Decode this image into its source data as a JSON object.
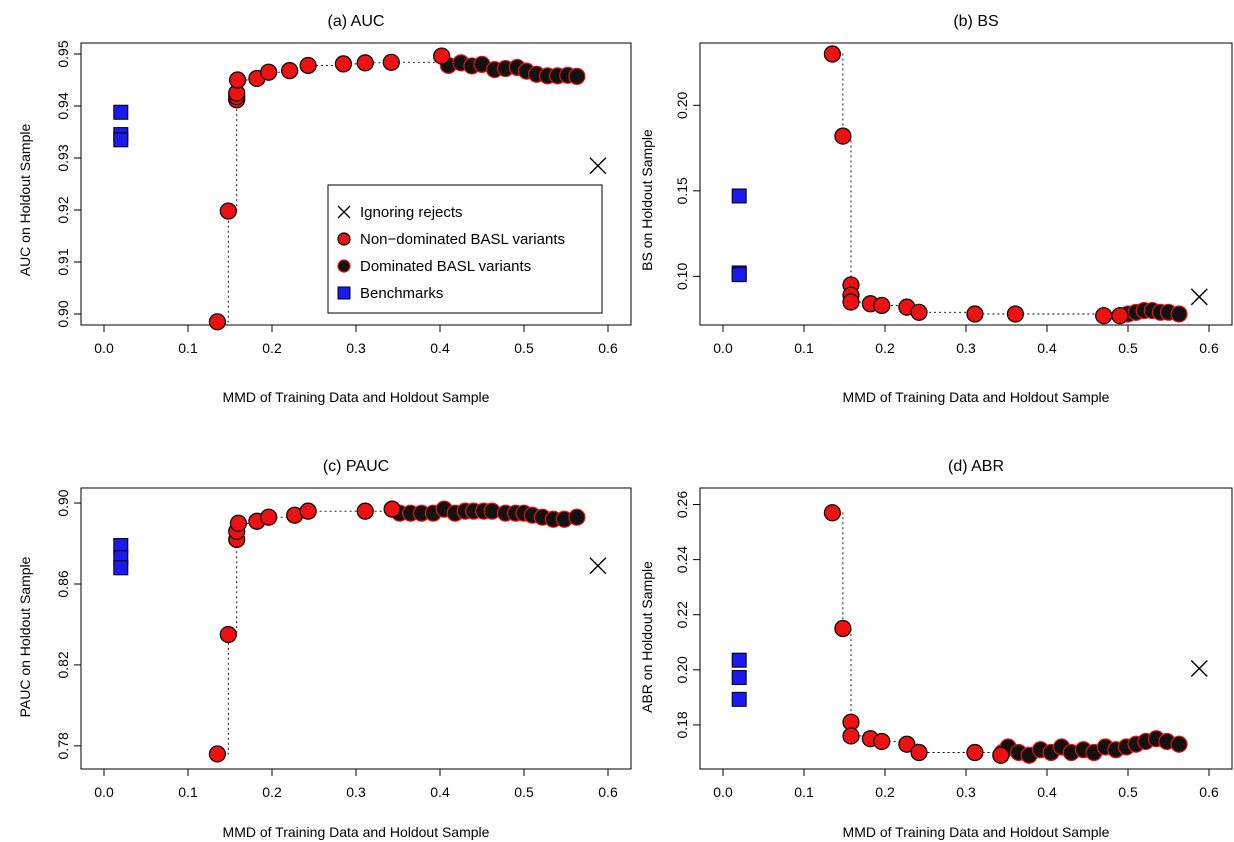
{
  "colors": {
    "non_dominated": "#ee1111",
    "dominated_fill": "#111111",
    "benchmark": "#1a1aee",
    "outline": "#000000"
  },
  "legend": {
    "items": [
      {
        "label": "Ignoring rejects",
        "marker": "cross"
      },
      {
        "label": "Non−dominated BASL variants",
        "marker": "red-circle"
      },
      {
        "label": "Dominated BASL variants",
        "marker": "dark-circle"
      },
      {
        "label": "Benchmarks",
        "marker": "blue-square"
      }
    ]
  },
  "chart_data": [
    {
      "type": "scatter",
      "title": "(a) AUC",
      "xlabel": "MMD of Training Data and Holdout Sample",
      "ylabel": "AUC on Holdout Sample",
      "xlim": [
        0.0,
        0.6
      ],
      "ylim": [
        0.9,
        0.95
      ],
      "xticks": [
        "0.0",
        "0.1",
        "0.2",
        "0.3",
        "0.4",
        "0.5",
        "0.6"
      ],
      "yticks": [
        "0.90",
        "0.91",
        "0.92",
        "0.93",
        "0.94",
        "0.95"
      ],
      "grid": false,
      "legend_position": "center-right",
      "ignoring_rejects": [
        0.588,
        0.9285
      ],
      "benchmarks": [
        [
          0.02,
          0.9388
        ],
        [
          0.02,
          0.9345
        ],
        [
          0.02,
          0.9335
        ]
      ],
      "frontier": [
        [
          0.135,
          0.8985
        ],
        [
          0.148,
          0.9198
        ],
        [
          0.158,
          0.9412
        ],
        [
          0.158,
          0.9418
        ],
        [
          0.158,
          0.9425
        ],
        [
          0.159,
          0.945
        ],
        [
          0.182,
          0.9453
        ],
        [
          0.196,
          0.9465
        ],
        [
          0.221,
          0.9468
        ],
        [
          0.243,
          0.9478
        ],
        [
          0.285,
          0.9481
        ],
        [
          0.311,
          0.9483
        ],
        [
          0.342,
          0.9484
        ],
        [
          0.402,
          0.9496
        ]
      ],
      "dominated": [
        [
          0.41,
          0.9478
        ],
        [
          0.425,
          0.9483
        ],
        [
          0.438,
          0.9477
        ],
        [
          0.45,
          0.948
        ],
        [
          0.465,
          0.947
        ],
        [
          0.478,
          0.9472
        ],
        [
          0.492,
          0.9474
        ],
        [
          0.503,
          0.9467
        ],
        [
          0.515,
          0.9461
        ],
        [
          0.528,
          0.9458
        ],
        [
          0.54,
          0.9458
        ],
        [
          0.552,
          0.9459
        ],
        [
          0.563,
          0.9457
        ]
      ]
    },
    {
      "type": "scatter",
      "title": "(b) BS",
      "xlabel": "MMD of Training Data and Holdout Sample",
      "ylabel": "BS on Holdout Sample",
      "xlim": [
        0.0,
        0.6
      ],
      "ylim": [
        0.078,
        0.23
      ],
      "xticks": [
        "0.0",
        "0.1",
        "0.2",
        "0.3",
        "0.4",
        "0.5",
        "0.6"
      ],
      "yticks": [
        "0.10",
        "0.15",
        "0.20"
      ],
      "grid": false,
      "ignoring_rejects": [
        0.588,
        0.088
      ],
      "benchmarks": [
        [
          0.02,
          0.147
        ],
        [
          0.02,
          0.102
        ],
        [
          0.02,
          0.101
        ]
      ],
      "frontier": [
        [
          0.135,
          0.23
        ],
        [
          0.148,
          0.182
        ],
        [
          0.158,
          0.095
        ],
        [
          0.158,
          0.089
        ],
        [
          0.158,
          0.085
        ],
        [
          0.182,
          0.084
        ],
        [
          0.196,
          0.083
        ],
        [
          0.227,
          0.082
        ],
        [
          0.242,
          0.079
        ],
        [
          0.311,
          0.078
        ],
        [
          0.361,
          0.078
        ],
        [
          0.47,
          0.077
        ],
        [
          0.49,
          0.077
        ]
      ],
      "dominated": [
        [
          0.5,
          0.078
        ],
        [
          0.51,
          0.079
        ],
        [
          0.52,
          0.08
        ],
        [
          0.53,
          0.08
        ],
        [
          0.54,
          0.079
        ],
        [
          0.55,
          0.079
        ],
        [
          0.563,
          0.078
        ]
      ]
    },
    {
      "type": "scatter",
      "title": "(c) PAUC",
      "xlabel": "MMD of Training Data and Holdout Sample",
      "ylabel": "PAUC on Holdout Sample",
      "xlim": [
        0.0,
        0.6
      ],
      "ylim": [
        0.774,
        0.902
      ],
      "xticks": [
        "0.0",
        "0.1",
        "0.2",
        "0.3",
        "0.4",
        "0.5",
        "0.6"
      ],
      "yticks": [
        "0.78",
        "0.82",
        "0.86",
        "0.90"
      ],
      "grid": false,
      "ignoring_rejects": [
        0.588,
        0.869
      ],
      "benchmarks": [
        [
          0.02,
          0.879
        ],
        [
          0.02,
          0.873
        ],
        [
          0.02,
          0.868
        ]
      ],
      "frontier": [
        [
          0.135,
          0.776
        ],
        [
          0.148,
          0.835
        ],
        [
          0.158,
          0.882
        ],
        [
          0.158,
          0.886
        ],
        [
          0.16,
          0.89
        ],
        [
          0.182,
          0.891
        ],
        [
          0.196,
          0.893
        ],
        [
          0.227,
          0.894
        ],
        [
          0.243,
          0.896
        ],
        [
          0.311,
          0.896
        ],
        [
          0.343,
          0.897
        ]
      ],
      "dominated": [
        [
          0.352,
          0.895
        ],
        [
          0.365,
          0.895
        ],
        [
          0.378,
          0.895
        ],
        [
          0.392,
          0.895
        ],
        [
          0.405,
          0.897
        ],
        [
          0.418,
          0.895
        ],
        [
          0.43,
          0.896
        ],
        [
          0.44,
          0.896
        ],
        [
          0.452,
          0.896
        ],
        [
          0.462,
          0.896
        ],
        [
          0.478,
          0.895
        ],
        [
          0.49,
          0.895
        ],
        [
          0.5,
          0.895
        ],
        [
          0.51,
          0.894
        ],
        [
          0.522,
          0.893
        ],
        [
          0.535,
          0.892
        ],
        [
          0.548,
          0.892
        ],
        [
          0.563,
          0.893
        ]
      ]
    },
    {
      "type": "scatter",
      "title": "(d) ABR",
      "xlabel": "MMD of Training Data and Holdout Sample",
      "ylabel": "ABR on Holdout Sample",
      "xlim": [
        0.0,
        0.6
      ],
      "ylim": [
        0.168,
        0.262
      ],
      "xticks": [
        "0.0",
        "0.1",
        "0.2",
        "0.3",
        "0.4",
        "0.5",
        "0.6"
      ],
      "yticks": [
        "0.18",
        "0.20",
        "0.22",
        "0.24",
        "0.26"
      ],
      "grid": false,
      "ignoring_rejects": [
        0.588,
        0.2005
      ],
      "benchmarks": [
        [
          0.02,
          0.2035
        ],
        [
          0.02,
          0.1972
        ],
        [
          0.02,
          0.1893
        ]
      ],
      "frontier": [
        [
          0.135,
          0.257
        ],
        [
          0.148,
          0.215
        ],
        [
          0.158,
          0.181
        ],
        [
          0.158,
          0.176
        ],
        [
          0.182,
          0.175
        ],
        [
          0.196,
          0.174
        ],
        [
          0.227,
          0.173
        ],
        [
          0.242,
          0.17
        ],
        [
          0.311,
          0.17
        ],
        [
          0.343,
          0.169
        ]
      ],
      "dominated": [
        [
          0.345,
          0.17
        ],
        [
          0.352,
          0.172
        ],
        [
          0.365,
          0.17
        ],
        [
          0.378,
          0.169
        ],
        [
          0.392,
          0.171
        ],
        [
          0.405,
          0.17
        ],
        [
          0.418,
          0.172
        ],
        [
          0.43,
          0.17
        ],
        [
          0.445,
          0.171
        ],
        [
          0.458,
          0.17
        ],
        [
          0.472,
          0.172
        ],
        [
          0.485,
          0.171
        ],
        [
          0.498,
          0.172
        ],
        [
          0.51,
          0.173
        ],
        [
          0.522,
          0.174
        ],
        [
          0.535,
          0.175
        ],
        [
          0.548,
          0.174
        ],
        [
          0.563,
          0.173
        ]
      ]
    }
  ]
}
